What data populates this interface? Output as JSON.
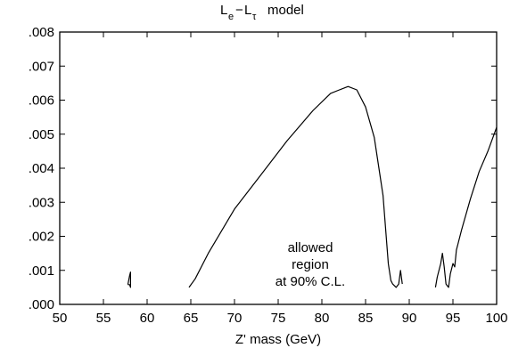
{
  "chart_data": {
    "type": "line",
    "title": {
      "L1": "L",
      "L1_sub": "e",
      "dash": "−",
      "L2": "L",
      "L2_sub": "τ",
      "rest": "model"
    },
    "xlabel": "Z' mass (GeV)",
    "ylabel": "",
    "xlim": [
      50,
      100
    ],
    "ylim": [
      0,
      0.008
    ],
    "xticks": [
      50,
      55,
      60,
      65,
      70,
      75,
      80,
      85,
      90,
      95,
      100
    ],
    "xtick_labels": [
      "50",
      "55",
      "60",
      "65",
      "70",
      "75",
      "80",
      "85",
      "90",
      "95",
      "100"
    ],
    "yticks": [
      0,
      0.001,
      0.002,
      0.003,
      0.004,
      0.005,
      0.006,
      0.007,
      0.008
    ],
    "ytick_labels": [
      ".000",
      ".001",
      ".002",
      ".003",
      ".004",
      ".005",
      ".006",
      ".007",
      ".008"
    ],
    "grid": false,
    "annotation": [
      "allowed",
      "region",
      "at 90% C.L."
    ],
    "series": [
      {
        "x": [
          57.8,
          58.0,
          58.1,
          58.1,
          58.0,
          57.8
        ],
        "y": [
          0.00058,
          0.00085,
          0.00095,
          0.0005,
          0.00058,
          0.00058
        ]
      },
      {
        "x": [
          64.8,
          65.5,
          67,
          70,
          73,
          76,
          79,
          81,
          82,
          83,
          84,
          85,
          86,
          87,
          87.6,
          87.9,
          88.1,
          88.5,
          88.8,
          89.0,
          89.2
        ],
        "y": [
          0.0005,
          0.00075,
          0.0015,
          0.0028,
          0.0038,
          0.0048,
          0.0057,
          0.0062,
          0.0063,
          0.0064,
          0.0063,
          0.0058,
          0.0049,
          0.0032,
          0.0012,
          0.0007,
          0.0006,
          0.0005,
          0.0006,
          0.001,
          0.0006
        ]
      },
      {
        "x": [
          93.0,
          93.2,
          93.6,
          93.8,
          94.0,
          94.2,
          94.5,
          94.7,
          95.0,
          95.2,
          95.4,
          95.6,
          96,
          97,
          98,
          99,
          100
        ],
        "y": [
          0.0005,
          0.0008,
          0.0012,
          0.0015,
          0.0011,
          0.0006,
          0.0005,
          0.0009,
          0.0012,
          0.0011,
          0.0016,
          0.0018,
          0.0022,
          0.0031,
          0.0039,
          0.0045,
          0.0052
        ]
      }
    ]
  }
}
